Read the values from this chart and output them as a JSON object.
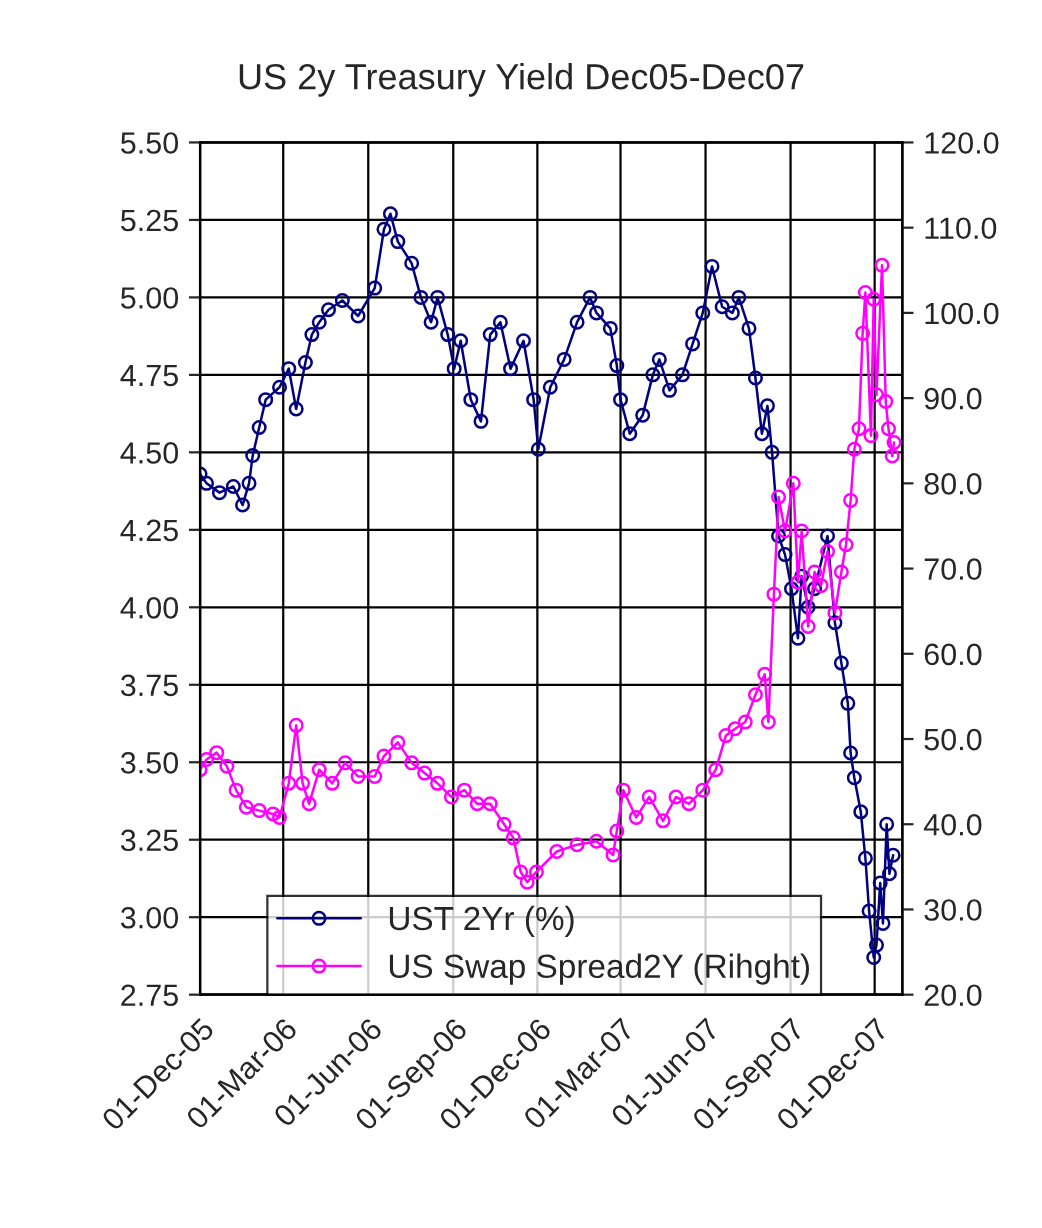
{
  "chart_data": {
    "type": "line",
    "title": "US 2y Treasury Yield Dec05-Dec07",
    "xlim": [
      "2005-12-01",
      "2007-12-31"
    ],
    "xticks": [
      {
        "value": "2005-12-01",
        "label": "01-Dec-05"
      },
      {
        "value": "2006-03-01",
        "label": "01-Mar-06"
      },
      {
        "value": "2006-06-01",
        "label": "01-Jun-06"
      },
      {
        "value": "2006-09-01",
        "label": "01-Sep-06"
      },
      {
        "value": "2006-12-01",
        "label": "01-Dec-06"
      },
      {
        "value": "2007-03-01",
        "label": "01-Mar-07"
      },
      {
        "value": "2007-06-01",
        "label": "01-Jun-07"
      },
      {
        "value": "2007-09-01",
        "label": "01-Sep-07"
      },
      {
        "value": "2007-12-01",
        "label": "01-Dec-07"
      }
    ],
    "ylim": [
      2.75,
      5.5
    ],
    "yticks": [
      {
        "value": 2.75,
        "label": "2.75"
      },
      {
        "value": 3.0,
        "label": "3.00"
      },
      {
        "value": 3.25,
        "label": "3.25"
      },
      {
        "value": 3.5,
        "label": "3.50"
      },
      {
        "value": 3.75,
        "label": "3.75"
      },
      {
        "value": 4.0,
        "label": "4.00"
      },
      {
        "value": 4.25,
        "label": "4.25"
      },
      {
        "value": 4.5,
        "label": "4.50"
      },
      {
        "value": 4.75,
        "label": "4.75"
      },
      {
        "value": 5.0,
        "label": "5.00"
      },
      {
        "value": 5.25,
        "label": "5.25"
      },
      {
        "value": 5.5,
        "label": "5.50"
      }
    ],
    "y2lim": [
      20,
      120
    ],
    "y2ticks": [
      {
        "value": 20,
        "label": "20.0"
      },
      {
        "value": 30,
        "label": "30.0"
      },
      {
        "value": 40,
        "label": "40.0"
      },
      {
        "value": 50,
        "label": "50.0"
      },
      {
        "value": 60,
        "label": "60.0"
      },
      {
        "value": 70,
        "label": "70.0"
      },
      {
        "value": 80,
        "label": "80.0"
      },
      {
        "value": 90,
        "label": "90.0"
      },
      {
        "value": 100,
        "label": "100.0"
      },
      {
        "value": 110,
        "label": "110.0"
      },
      {
        "value": 120,
        "label": "120.0"
      }
    ],
    "grid": true,
    "legend": "bottom",
    "marker": "circle",
    "line_style": "solid",
    "series": [
      {
        "name": "UST 2Yr (%)",
        "color": "#000080",
        "x": [
          "2005-12-01",
          "2005-12-08",
          "2005-12-22",
          "2006-01-06",
          "2006-01-16",
          "2006-01-23",
          "2006-01-27",
          "2006-02-03",
          "2006-02-10",
          "2006-02-25",
          "2006-03-07",
          "2006-03-15",
          "2006-03-25",
          "2006-04-01",
          "2006-04-09",
          "2006-04-19",
          "2006-05-04",
          "2006-05-21",
          "2006-06-08",
          "2006-06-18",
          "2006-06-25",
          "2006-07-03",
          "2006-07-18",
          "2006-07-28",
          "2006-08-08",
          "2006-08-15",
          "2006-08-26",
          "2006-09-02",
          "2006-09-09",
          "2006-09-20",
          "2006-10-01",
          "2006-10-11",
          "2006-10-22",
          "2006-11-02",
          "2006-11-16",
          "2006-11-27",
          "2006-12-02",
          "2006-12-15",
          "2006-12-30",
          "2007-01-13",
          "2007-01-27",
          "2007-02-03",
          "2007-02-18",
          "2007-02-25",
          "2007-03-01",
          "2007-03-11",
          "2007-03-25",
          "2007-04-05",
          "2007-04-12",
          "2007-04-23",
          "2007-05-07",
          "2007-05-18",
          "2007-05-29",
          "2007-06-08",
          "2007-06-19",
          "2007-06-30",
          "2007-07-07",
          "2007-07-18",
          "2007-07-25",
          "2007-08-01",
          "2007-08-07",
          "2007-08-12",
          "2007-08-19",
          "2007-08-26",
          "2007-09-02",
          "2007-09-09",
          "2007-09-13",
          "2007-09-20",
          "2007-09-27",
          "2007-10-11",
          "2007-10-19",
          "2007-10-26",
          "2007-11-02",
          "2007-11-05",
          "2007-11-09",
          "2007-11-16",
          "2007-11-21",
          "2007-11-25",
          "2007-11-30",
          "2007-12-03",
          "2007-12-07",
          "2007-12-10",
          "2007-12-14",
          "2007-12-17",
          "2007-12-21"
        ],
        "values": [
          4.43,
          4.4,
          4.37,
          4.39,
          4.33,
          4.4,
          4.49,
          4.58,
          4.67,
          4.71,
          4.77,
          4.64,
          4.79,
          4.88,
          4.92,
          4.96,
          4.99,
          4.94,
          5.03,
          5.22,
          5.27,
          5.18,
          5.11,
          5.0,
          4.92,
          5.0,
          4.88,
          4.77,
          4.86,
          4.67,
          4.6,
          4.88,
          4.92,
          4.77,
          4.86,
          4.67,
          4.51,
          4.71,
          4.8,
          4.92,
          5.0,
          4.95,
          4.9,
          4.78,
          4.67,
          4.56,
          4.62,
          4.75,
          4.8,
          4.7,
          4.75,
          4.85,
          4.95,
          5.1,
          4.97,
          4.95,
          5.0,
          4.9,
          4.74,
          4.56,
          4.65,
          4.5,
          4.23,
          4.17,
          4.06,
          3.9,
          4.1,
          4.0,
          4.06,
          4.23,
          3.95,
          3.82,
          3.69,
          3.53,
          3.45,
          3.34,
          3.19,
          3.02,
          2.87,
          2.91,
          3.11,
          2.98,
          3.3,
          3.14,
          3.2
        ]
      },
      {
        "name": "US Swap Spread2Y (Rihght)",
        "color": "#ff00ff",
        "axis": "y2",
        "x": [
          "2005-12-01",
          "2005-12-08",
          "2005-12-19",
          "2005-12-30",
          "2006-01-09",
          "2006-01-20",
          "2006-02-03",
          "2006-02-18",
          "2006-02-25",
          "2006-03-07",
          "2006-03-15",
          "2006-03-22",
          "2006-03-29",
          "2006-04-09",
          "2006-04-23",
          "2006-05-07",
          "2006-05-21",
          "2006-06-08",
          "2006-06-18",
          "2006-07-03",
          "2006-07-18",
          "2006-08-01",
          "2006-08-15",
          "2006-08-30",
          "2006-09-13",
          "2006-09-27",
          "2006-10-11",
          "2006-10-26",
          "2006-11-05",
          "2006-11-13",
          "2006-11-20",
          "2006-11-30",
          "2006-12-22",
          "2007-01-13",
          "2007-02-03",
          "2007-02-21",
          "2007-02-25",
          "2007-03-04",
          "2007-03-18",
          "2007-04-01",
          "2007-04-16",
          "2007-04-30",
          "2007-05-14",
          "2007-05-29",
          "2007-06-12",
          "2007-06-23",
          "2007-07-03",
          "2007-07-14",
          "2007-07-25",
          "2007-08-04",
          "2007-08-08",
          "2007-08-14",
          "2007-08-19",
          "2007-08-26",
          "2007-09-04",
          "2007-09-09",
          "2007-09-13",
          "2007-09-20",
          "2007-09-27",
          "2007-10-04",
          "2007-10-11",
          "2007-10-19",
          "2007-10-26",
          "2007-10-31",
          "2007-11-05",
          "2007-11-09",
          "2007-11-14",
          "2007-11-18",
          "2007-11-21",
          "2007-11-27",
          "2007-11-30",
          "2007-12-03",
          "2007-12-09",
          "2007-12-13",
          "2007-12-16",
          "2007-12-20",
          "2007-12-22"
        ],
        "values": [
          46.4,
          47.6,
          48.4,
          46.8,
          44.0,
          42.0,
          41.6,
          41.2,
          40.8,
          44.8,
          51.6,
          44.8,
          42.4,
          46.4,
          44.8,
          47.2,
          45.6,
          45.6,
          48.0,
          49.6,
          47.2,
          46.0,
          44.8,
          43.2,
          44.0,
          42.4,
          42.4,
          40.0,
          38.4,
          34.4,
          33.2,
          34.4,
          36.8,
          37.6,
          38.0,
          36.4,
          39.2,
          44.0,
          40.8,
          43.2,
          40.4,
          43.2,
          42.4,
          44.0,
          46.4,
          50.4,
          51.2,
          52.0,
          55.2,
          57.6,
          52.0,
          67.0,
          78.4,
          74.4,
          80.0,
          68.4,
          74.4,
          63.2,
          69.6,
          68.0,
          72.0,
          64.8,
          69.6,
          72.8,
          78.0,
          84.0,
          86.4,
          97.6,
          102.4,
          85.6,
          101.6,
          90.4,
          105.6,
          89.6,
          86.4,
          83.2,
          84.8
        ]
      }
    ]
  }
}
